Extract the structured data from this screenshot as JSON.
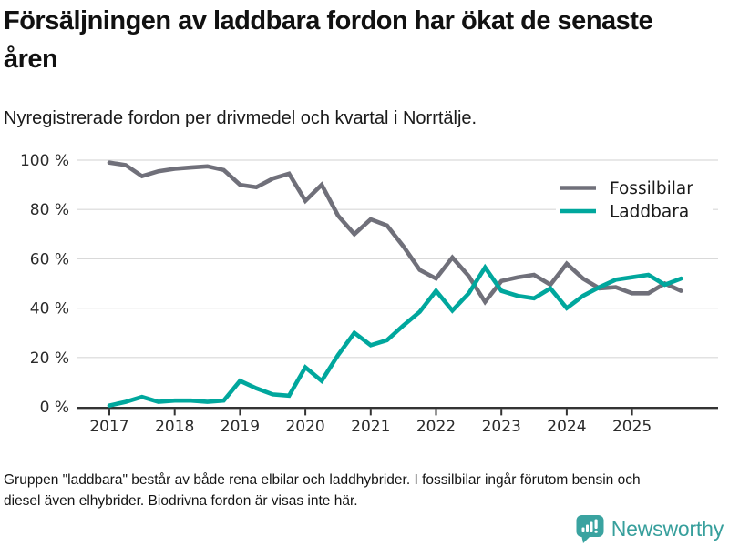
{
  "header": {
    "title": "Försäljningen av laddbara fordon har ökat de senaste åren",
    "subtitle": "Nyregistrerade fordon per drivmedel och kvartal i Norrtälje."
  },
  "chart_data": {
    "type": "line",
    "x": [
      "2017-Q1",
      "2017-Q2",
      "2017-Q3",
      "2017-Q4",
      "2018-Q1",
      "2018-Q2",
      "2018-Q3",
      "2018-Q4",
      "2019-Q1",
      "2019-Q2",
      "2019-Q3",
      "2019-Q4",
      "2020-Q1",
      "2020-Q2",
      "2020-Q3",
      "2020-Q4",
      "2021-Q1",
      "2021-Q2",
      "2021-Q3",
      "2021-Q4",
      "2022-Q1",
      "2022-Q2",
      "2022-Q3",
      "2022-Q4",
      "2023-Q1",
      "2023-Q2",
      "2023-Q3",
      "2023-Q4",
      "2024-Q1",
      "2024-Q2",
      "2024-Q3",
      "2024-Q4",
      "2025-Q1",
      "2025-Q2",
      "2025-Q3",
      "2025-Q4"
    ],
    "series": [
      {
        "name": "Fossilbilar",
        "color": "#70707a",
        "values": [
          99,
          98,
          93.5,
          95.5,
          96.5,
          97,
          97.5,
          96,
          90,
          89,
          92.5,
          94.5,
          83.5,
          90,
          77.5,
          70,
          76,
          73.5,
          65,
          55.5,
          52,
          60.5,
          53,
          42.5,
          51,
          52.5,
          53.5,
          49.5,
          58,
          52,
          48,
          48.5,
          46,
          46,
          50,
          47
        ]
      },
      {
        "name": "Laddbara",
        "color": "#00a79d",
        "values": [
          0.5,
          2,
          4,
          2,
          2.5,
          2.5,
          2,
          2.5,
          10.5,
          7.5,
          5,
          4.5,
          16,
          10.5,
          21,
          30,
          25,
          27,
          33,
          38.5,
          47,
          39,
          46,
          56.5,
          47,
          45,
          44,
          48,
          40,
          45,
          48.5,
          51.5,
          52.5,
          53.5,
          49.5,
          52
        ]
      }
    ],
    "xticks": [
      "2017",
      "2018",
      "2019",
      "2020",
      "2021",
      "2022",
      "2023",
      "2024",
      "2025"
    ],
    "yticks": [
      "0 %",
      "20 %",
      "40 %",
      "60 %",
      "80 %",
      "100 %"
    ],
    "ylim": [
      0,
      100
    ],
    "grid": true,
    "legend_position": "top-right"
  },
  "colors": {
    "background": "#ffffff",
    "grid": "#d9d9d9",
    "axis": "#333333",
    "axis_text": "#2b2b2b",
    "legend_text": "#1a1a1a"
  },
  "footer": {
    "note": "Gruppen \"laddbara\" består av både rena elbilar och laddhybrider. I fossilbilar ingår förutom bensin och diesel även elhybrider. Biodrivna fordon är visas inte här."
  },
  "branding": {
    "logo_text": "Newsworthy",
    "logo_color": "#379f9c",
    "icon": "bar-chart-pin-icon"
  }
}
